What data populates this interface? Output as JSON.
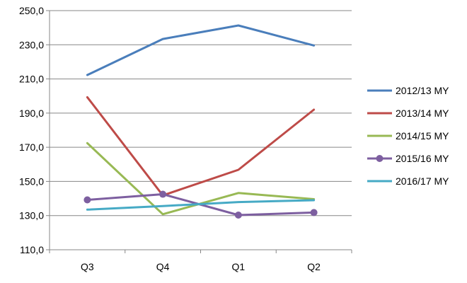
{
  "chart_data": {
    "type": "line",
    "categories": [
      "Q3",
      "Q4",
      "Q1",
      "Q2"
    ],
    "ylim": [
      110,
      250
    ],
    "yticks": [
      "110,0",
      "130,0",
      "150,0",
      "170,0",
      "190,0",
      "210,0",
      "230,0",
      "250,0"
    ],
    "grid": true,
    "legend_position": "right",
    "series": [
      {
        "name": "2012/13 MY",
        "color": "#4a7ebb",
        "marker": "none",
        "values": [
          212.3,
          233.4,
          241.3,
          229.6
        ]
      },
      {
        "name": "2013/14 MY",
        "color": "#be4b48",
        "marker": "none",
        "values": [
          199.3,
          141.8,
          156.8,
          192.0
        ]
      },
      {
        "name": "2014/15 MY",
        "color": "#98b954",
        "marker": "none",
        "values": [
          172.4,
          130.8,
          143.2,
          139.6
        ]
      },
      {
        "name": "2015/16 MY",
        "color": "#7d5fa0",
        "marker": "circle",
        "values": [
          139.2,
          142.5,
          130.3,
          131.8
        ]
      },
      {
        "name": "2016/17 MY",
        "color": "#46aac5",
        "marker": "none",
        "values": [
          133.5,
          135.6,
          137.9,
          139.0
        ]
      }
    ]
  }
}
